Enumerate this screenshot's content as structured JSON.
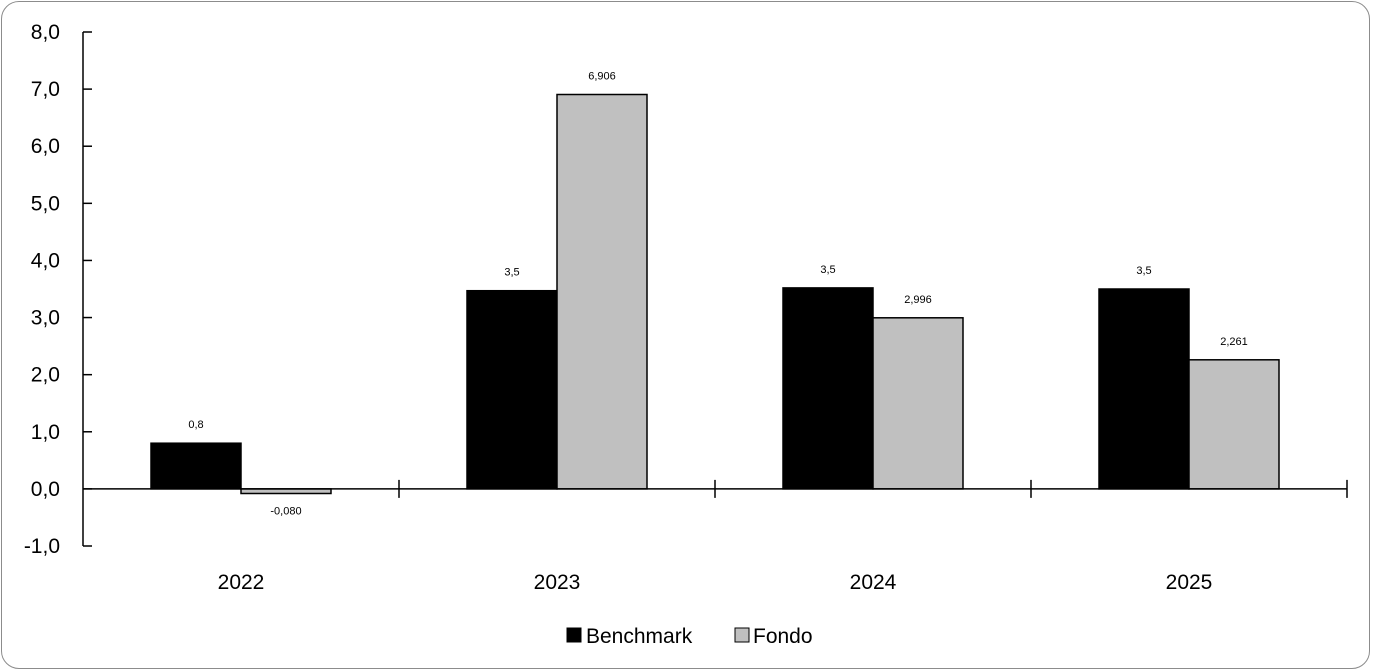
{
  "chart_data": {
    "type": "bar",
    "categories": [
      "2022",
      "2023",
      "2024",
      "2025"
    ],
    "series": [
      {
        "name": "Benchmark",
        "values": [
          0.8,
          3.47,
          3.52,
          3.5
        ],
        "labels": [
          "0,8",
          "3,5",
          "3,5",
          "3,5"
        ],
        "color": "#000000"
      },
      {
        "name": "Fondo",
        "values": [
          -0.08,
          6.906,
          2.996,
          2.261
        ],
        "labels": [
          "-0,080",
          "6,906",
          "2,996",
          "2,261"
        ],
        "color": "#c0c0c0"
      }
    ],
    "y_ticks": [
      "-1,0",
      "0,0",
      "1,0",
      "2,0",
      "3,0",
      "4,0",
      "5,0",
      "6,0",
      "7,0",
      "8,0"
    ],
    "ylim": [
      -1,
      8
    ],
    "title": "",
    "xlabel": "",
    "ylabel": "",
    "grid": false,
    "legend_position": "bottom-center"
  }
}
